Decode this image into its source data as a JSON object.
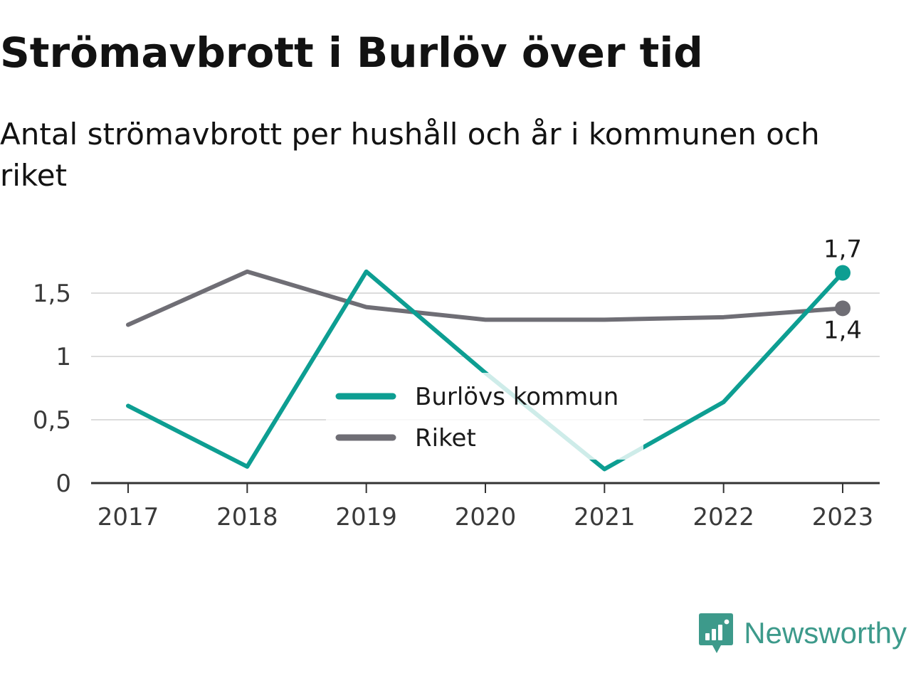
{
  "header": {
    "title": "Strömavbrott i Burlöv över tid",
    "subtitle": "Antal strömavbrott per hushåll och år i kommunen och riket"
  },
  "brand": {
    "name": "Newsworthy",
    "icon": "newsworthy-logo-icon",
    "color": "#3d9a8b"
  },
  "chart_data": {
    "type": "line",
    "title": "Strömavbrott i Burlöv över tid",
    "subtitle": "Antal strömavbrott per hushåll och år i kommunen och riket",
    "xlabel": "",
    "ylabel": "",
    "categories": [
      "2017",
      "2018",
      "2019",
      "2020",
      "2021",
      "2022",
      "2023"
    ],
    "ylim": [
      0,
      1.7
    ],
    "yticks": [
      0,
      0.5,
      1,
      1.5
    ],
    "ytick_labels": [
      "0",
      "0,5",
      "1",
      "1,5"
    ],
    "grid": true,
    "legend_position": "center",
    "series": [
      {
        "name": "Burlövs kommun",
        "color": "#0d9e92",
        "values": [
          0.61,
          0.13,
          1.67,
          0.87,
          0.11,
          0.64,
          1.66
        ],
        "end_label": "1,7"
      },
      {
        "name": "Riket",
        "color": "#6f6e75",
        "values": [
          1.25,
          1.67,
          1.39,
          1.29,
          1.29,
          1.31,
          1.38
        ],
        "end_label": "1,4"
      }
    ]
  }
}
